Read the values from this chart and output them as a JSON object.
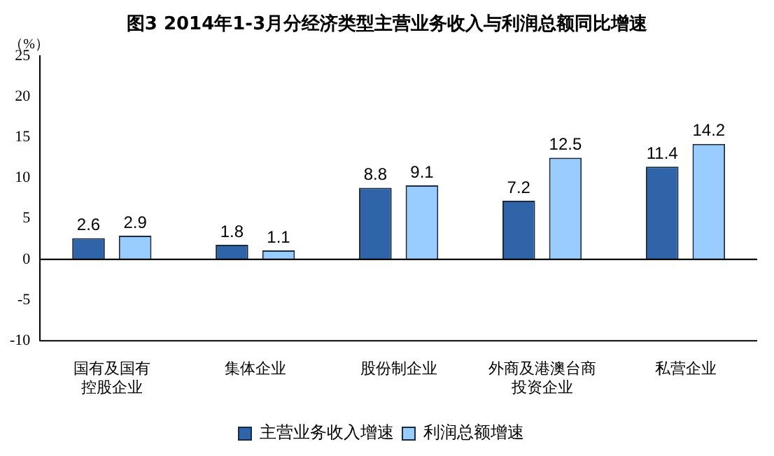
{
  "chart_data": {
    "type": "bar",
    "title": "图3  2014年1-3月分经济类型主营业务收入与利润总额同比增速",
    "ylabel": "（%）",
    "categories": [
      "国有及国有控股企业",
      "集体企业",
      "股份制企业",
      "外商及港澳台商投资企业",
      "私营企业"
    ],
    "series": [
      {
        "name": "主营业务收入增速",
        "color": "#2f64a8",
        "values": [
          2.6,
          1.8,
          8.8,
          7.2,
          11.4
        ]
      },
      {
        "name": "利润总额增速",
        "color": "#99ccff",
        "values": [
          2.9,
          1.1,
          9.1,
          12.5,
          14.2
        ]
      }
    ],
    "ylim": [
      -10,
      25
    ],
    "yticks": [
      -10,
      -5,
      0,
      5,
      10,
      15,
      20,
      25
    ],
    "grid": false,
    "legend": "bottom",
    "data_labels": true,
    "ref_lines": [
      {
        "axis": "y",
        "value": 0,
        "color": "#000000"
      }
    ]
  }
}
